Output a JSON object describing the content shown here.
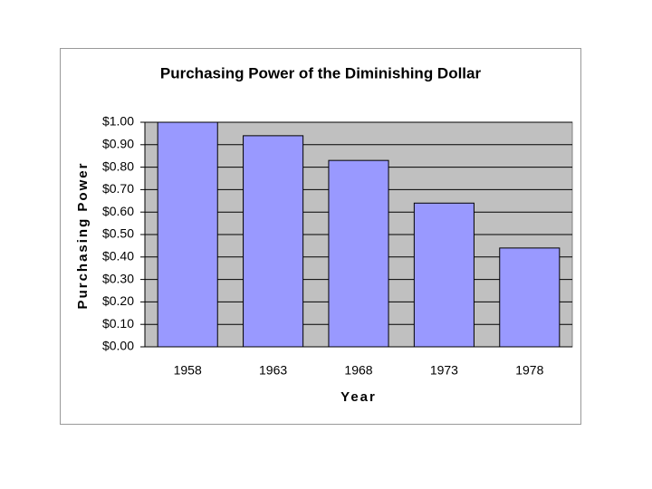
{
  "chart_data": {
    "type": "bar",
    "title": "Purchasing Power of the Diminishing Dollar",
    "x_label": "Year",
    "y_label": "Purchasing Power",
    "categories": [
      "1958",
      "1963",
      "1968",
      "1973",
      "1978"
    ],
    "values": [
      1.0,
      0.94,
      0.83,
      0.64,
      0.44
    ],
    "color": "#9999ff",
    "plot_background": "#c0c0c0",
    "ylim": [
      0,
      1
    ],
    "yticks": [
      {
        "value": 0,
        "label": "$0.00"
      },
      {
        "value": 0.1,
        "label": "$0.10"
      },
      {
        "value": 0.2,
        "label": "$0.20"
      },
      {
        "value": 0.3,
        "label": "$0.30"
      },
      {
        "value": 0.4,
        "label": "$0.40"
      },
      {
        "value": 0.5,
        "label": "$0.50"
      },
      {
        "value": 0.6,
        "label": "$0.60"
      },
      {
        "value": 0.7,
        "label": "$0.70"
      },
      {
        "value": 0.8,
        "label": "$0.80"
      },
      {
        "value": 0.9,
        "label": "$0.90"
      },
      {
        "value": 1,
        "label": "$1.00"
      }
    ],
    "grid": true
  }
}
